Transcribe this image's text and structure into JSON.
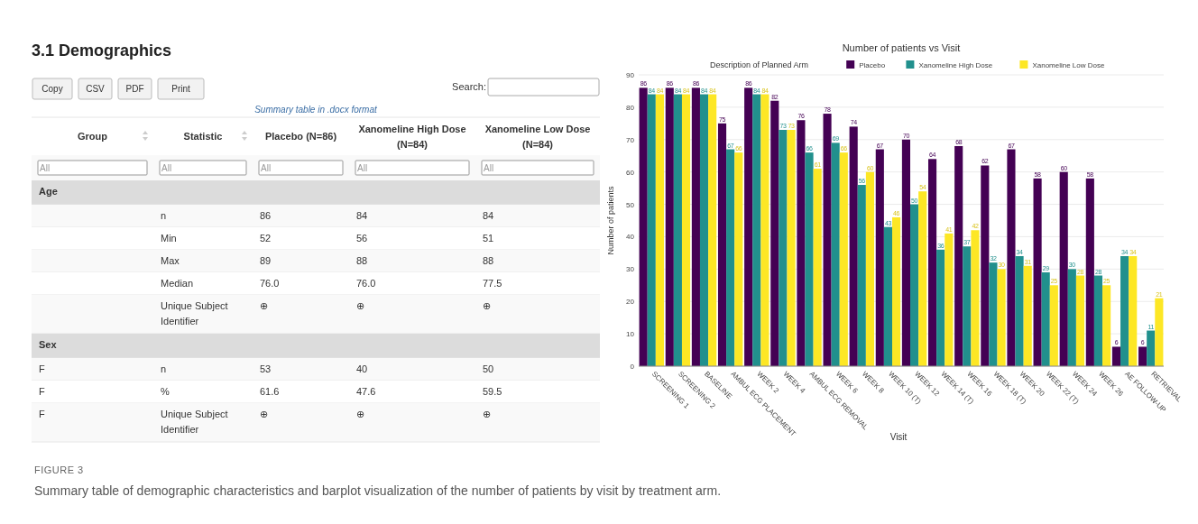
{
  "chart_data": [
    {
      "type": "other",
      "title": "3.1  Demographics",
      "annotations": [
        "Copy",
        "CSV",
        "PDF",
        "Print",
        "Search:",
        "Summary table in .docx format"
      ],
      "categories": [
        "Group",
        "Statistic",
        "Placebo (N=86)",
        "Xanomeline High Dose (N=84)",
        "Xanomeline Low Dose (N=84)"
      ],
      "cell_labels": [
        [
          "All",
          "All",
          "All",
          "All",
          "All"
        ],
        [
          "Age",
          null,
          null,
          null,
          null
        ],
        [
          null,
          "n",
          "86",
          "84",
          "84"
        ],
        [
          null,
          "Min",
          "52",
          "56",
          "51"
        ],
        [
          null,
          "Max",
          "89",
          "88",
          "88"
        ],
        [
          null,
          "Median",
          "76.0",
          "76.0",
          "77.5"
        ],
        [
          null,
          "Unique Subject Identifier",
          "⊕",
          "⊕",
          "⊕"
        ],
        [
          "Sex",
          null,
          null,
          null,
          null
        ],
        [
          "F",
          "n",
          "53",
          "40",
          "50"
        ],
        [
          "F",
          "%",
          "61.6",
          "47.6",
          "59.5"
        ],
        [
          "F",
          "Unique Subject Identifier",
          "⊕",
          "⊕",
          "⊕"
        ]
      ]
    },
    {
      "type": "bar",
      "title": "Number of patients vs Visit",
      "xlabel": "Visit",
      "ylabel": "Number of patients",
      "legend_title": "Description of Planned Arm",
      "legend": "top",
      "grid": "y",
      "data_labels": true,
      "categories": [
        "SCREENING 1",
        "SCREENING 2",
        "BASELINE",
        "AMBUL ECG PLACEMENT",
        "WEEK 2",
        "WEEK 4",
        "AMBUL ECG REMOVAL",
        "WEEK 6",
        "WEEK 8",
        "WEEK 10 (T)",
        "WEEK 12",
        "WEEK 14 (T)",
        "WEEK 16",
        "WEEK 18 (T)",
        "WEEK 20",
        "WEEK 22 (T)",
        "WEEK 24",
        "WEEK 26",
        "AE FOLLOW-UP",
        "RETRIEVAL"
      ],
      "ylim": [
        0,
        90
      ],
      "yticks": [
        0,
        10,
        20,
        30,
        40,
        50,
        60,
        70,
        80,
        90
      ],
      "series": [
        {
          "name": "Placebo",
          "color": "#440154",
          "values": [
            86,
            86,
            86,
            75,
            86,
            82,
            76,
            78,
            74,
            67,
            70,
            64,
            68,
            62,
            67,
            58,
            60,
            58,
            6,
            6
          ]
        },
        {
          "name": "Xanomeline High Dose",
          "color": "#21908d",
          "values": [
            84,
            84,
            84,
            67,
            84,
            73,
            66,
            69,
            56,
            43,
            50,
            36,
            37,
            32,
            34,
            29,
            30,
            28,
            34,
            11
          ]
        },
        {
          "name": "Xanomeline Low Dose",
          "color": "#fde725",
          "values": [
            84,
            84,
            84,
            66,
            84,
            73,
            61,
            66,
            60,
            46,
            54,
            41,
            42,
            30,
            31,
            25,
            28,
            25,
            34,
            21
          ]
        }
      ],
      "annotations": [
        "FIGURE 3",
        "Summary table of demographic characteristics and barplot visualization of the number of patients by visit by treatment arm."
      ]
    }
  ]
}
